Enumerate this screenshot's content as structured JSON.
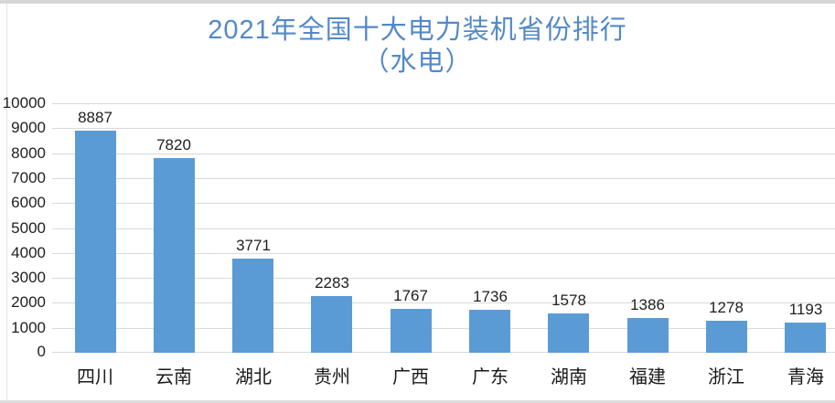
{
  "frame": {
    "top_color": "#d7d7d7",
    "bottom_color": "#dedede",
    "left_color": "#e4e4e4"
  },
  "chart_data": {
    "type": "bar",
    "title": "2021年全国十大电力装机省份排行",
    "subtitle": "（水电）",
    "categories": [
      "四川",
      "云南",
      "湖北",
      "贵州",
      "广西",
      "广东",
      "湖南",
      "福建",
      "浙江",
      "青海"
    ],
    "values": [
      8887,
      7820,
      3771,
      2283,
      1767,
      1736,
      1578,
      1386,
      1278,
      1193
    ],
    "xlabel": "",
    "ylabel": "",
    "ylim": [
      0,
      10000
    ],
    "ytick_step": 1000,
    "yticks": [
      0,
      1000,
      2000,
      3000,
      4000,
      5000,
      6000,
      7000,
      8000,
      9000,
      10000
    ],
    "grid": true,
    "legend": "none",
    "data_labels": true,
    "colors": {
      "bar": "#5B9BD5",
      "title": "#5389C9",
      "axis_text": "#1f1f1f",
      "gridline": "#D9D9D9"
    }
  }
}
